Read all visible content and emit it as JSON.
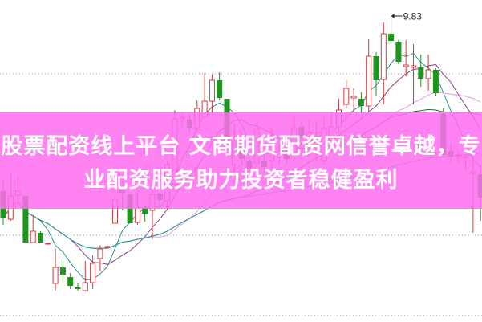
{
  "chart_data": {
    "type": "candlestick",
    "ylim": [
      6.02,
      10.03
    ],
    "gridlines": [
      9.11,
      8.1,
      7.1,
      6.1
    ],
    "max_label": "9.83",
    "max_value": 9.83,
    "ma_periods": [
      5,
      10,
      20,
      30,
      60
    ],
    "colors": {
      "up": "#d23c3c",
      "down": "#1e961e",
      "ma": [
        "#2f8f8f",
        "#8a3f8a",
        "#e59ae5",
        "#2f6a2f",
        "#2aa0a0"
      ],
      "grid": "#999999"
    },
    "candles": [
      [
        7.65,
        7.31,
        7.78,
        7.23
      ],
      [
        7.3,
        7.59,
        7.88,
        7.28
      ],
      [
        7.6,
        7.65,
        7.85,
        7.43
      ],
      [
        7.59,
        7.01,
        7.59,
        7.01
      ],
      [
        7.01,
        7.15,
        7.35,
        7.01
      ],
      [
        7.13,
        7.01,
        7.15,
        7.01
      ],
      [
        7.0,
        7.0,
        7.01,
        7.0
      ],
      [
        6.5,
        6.7,
        6.93,
        6.41
      ],
      [
        6.7,
        6.61,
        6.78,
        6.53
      ],
      [
        6.58,
        6.47,
        6.63,
        6.43
      ],
      [
        6.45,
        6.43,
        6.51,
        6.41
      ],
      [
        6.41,
        6.51,
        6.78,
        6.41
      ],
      [
        6.51,
        6.75,
        6.85,
        6.43
      ],
      [
        6.81,
        6.93,
        6.98,
        6.65
      ],
      [
        6.96,
        6.96,
        6.97,
        6.96
      ],
      [
        7.25,
        7.54,
        7.58,
        7.15
      ],
      [
        7.69,
        7.63,
        7.78,
        7.41
      ],
      [
        7.61,
        7.25,
        7.63,
        7.25
      ],
      [
        7.26,
        7.44,
        7.63,
        7.23
      ],
      [
        7.44,
        7.37,
        7.48,
        7.27
      ],
      [
        7.41,
        7.61,
        7.71,
        7.05
      ],
      [
        7.62,
        7.54,
        7.65,
        7.47
      ],
      [
        7.53,
        7.98,
        8.03,
        7.41
      ],
      [
        7.73,
        8.55,
        8.66,
        7.68
      ],
      [
        8.55,
        8.57,
        8.63,
        8.43
      ],
      [
        8.54,
        8.44,
        8.62,
        8.38
      ],
      [
        8.43,
        8.68,
        8.78,
        8.38
      ],
      [
        8.58,
        8.77,
        9.12,
        8.53
      ],
      [
        8.77,
        9.03,
        9.1,
        8.63
      ],
      [
        9.03,
        8.81,
        9.13,
        8.78
      ],
      [
        8.8,
        8.21,
        8.8,
        8.13
      ],
      [
        7.98,
        8.28,
        8.48,
        7.88
      ],
      [
        8.3,
        8.05,
        8.38,
        7.98
      ],
      [
        8.03,
        7.93,
        8.13,
        7.83
      ],
      [
        8.0,
        8.43,
        8.53,
        7.93
      ],
      [
        8.03,
        7.95,
        8.13,
        7.88
      ],
      [
        8.03,
        8.21,
        8.43,
        7.93
      ],
      [
        8.07,
        8.15,
        8.28,
        7.98
      ],
      [
        8.11,
        8.05,
        8.23,
        7.98
      ],
      [
        8.13,
        8.43,
        8.58,
        8.03
      ],
      [
        8.45,
        8.33,
        8.53,
        8.23
      ],
      [
        8.18,
        8.38,
        8.53,
        8.08
      ],
      [
        8.13,
        8.33,
        8.53,
        8.03
      ],
      [
        8.03,
        8.43,
        8.58,
        7.98
      ],
      [
        8.28,
        8.45,
        8.63,
        8.13
      ],
      [
        8.45,
        8.66,
        8.8,
        8.38
      ],
      [
        8.73,
        8.93,
        9.03,
        8.68
      ],
      [
        8.81,
        8.83,
        8.93,
        8.63
      ],
      [
        8.8,
        8.71,
        8.88,
        8.63
      ],
      [
        8.71,
        9.33,
        9.55,
        8.63
      ],
      [
        9.33,
        9.03,
        9.38,
        8.83
      ],
      [
        9.04,
        9.61,
        9.75,
        8.73
      ],
      [
        9.61,
        9.52,
        9.83,
        9.48
      ],
      [
        9.51,
        9.26,
        9.53,
        9.23
      ],
      [
        9.2,
        9.22,
        9.53,
        9.08
      ],
      [
        9.19,
        9.21,
        9.48,
        8.73
      ],
      [
        9.19,
        9.05,
        9.35,
        8.95
      ],
      [
        9.05,
        9.16,
        9.35,
        8.9
      ],
      [
        9.16,
        8.87,
        9.18,
        8.83
      ],
      [
        8.61,
        8.1,
        8.68,
        8.08
      ],
      [
        8.15,
        8.08,
        8.25,
        8.0
      ],
      [
        8.1,
        8.1,
        8.15,
        8.0
      ],
      [
        8.08,
        8.08,
        8.1,
        7.9
      ],
      [
        7.87,
        7.89,
        8.18,
        7.13
      ],
      [
        7.86,
        7.57,
        7.98,
        7.28
      ]
    ]
  },
  "banner": {
    "line1": "股票配资线上平台 文商期货配资网信誉卓越，专",
    "line2": "业配资服务助力投资者稳健盈利"
  }
}
